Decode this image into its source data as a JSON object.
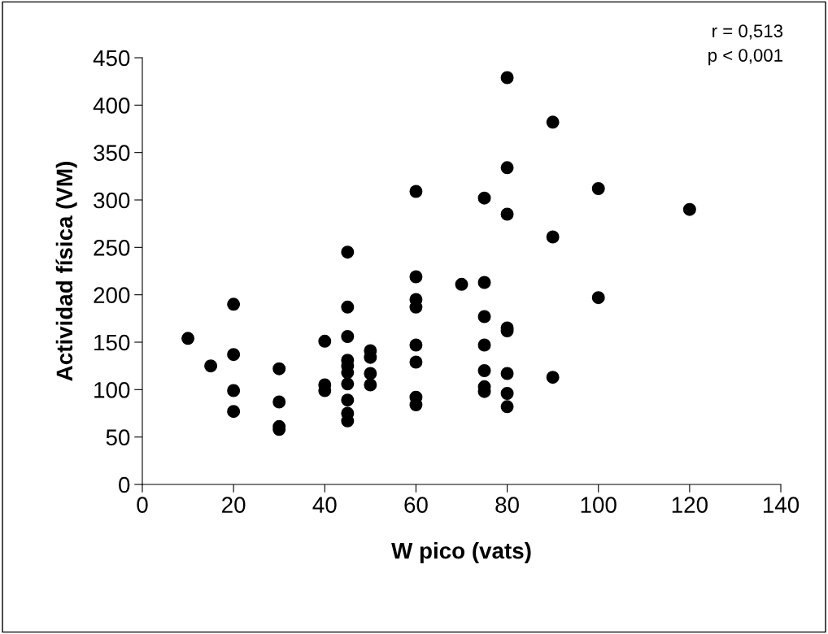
{
  "chart_data": {
    "type": "scatter",
    "xlabel": "W pico (vats)",
    "ylabel": "Actividad física (VM)",
    "annotations": [
      "r = 0,513",
      "p < 0,001"
    ],
    "series": [
      {
        "color": "#000000",
        "x": [
          10,
          15,
          20,
          20,
          20,
          20,
          30,
          30,
          30,
          30,
          40,
          40,
          40,
          45,
          45,
          45,
          45,
          45,
          45,
          45,
          45,
          45,
          45,
          50,
          50,
          50,
          50,
          60,
          60,
          60,
          60,
          60,
          60,
          60,
          60,
          70,
          75,
          75,
          75,
          75,
          75,
          75,
          75,
          80,
          80,
          80,
          80,
          80,
          80,
          80,
          80,
          90,
          90,
          90,
          100,
          100,
          120
        ],
        "values": [
          154,
          125,
          190,
          137,
          99,
          77,
          122,
          87,
          61,
          58,
          151,
          105,
          99,
          245,
          187,
          156,
          131,
          125,
          118,
          106,
          89,
          75,
          67,
          141,
          134,
          117,
          105,
          309,
          219,
          195,
          187,
          147,
          129,
          92,
          84,
          211,
          302,
          213,
          177,
          147,
          120,
          103,
          98,
          429,
          334,
          285,
          165,
          162,
          117,
          96,
          82,
          382,
          261,
          113,
          312,
          197,
          290
        ]
      }
    ],
    "xlim": [
      0,
      140
    ],
    "xticks": [
      0,
      20,
      40,
      60,
      80,
      100,
      120,
      140
    ],
    "ylim": [
      0,
      450
    ],
    "yticks": [
      0,
      50,
      100,
      150,
      200,
      250,
      300,
      350,
      400,
      450
    ],
    "grid": false,
    "legend": false,
    "marker": "circle"
  }
}
